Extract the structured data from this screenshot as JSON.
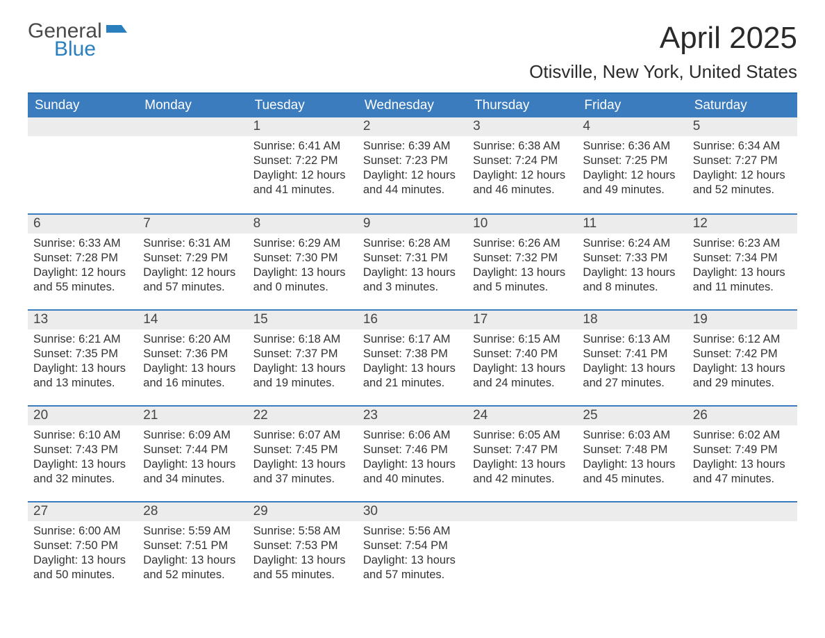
{
  "logo": {
    "general": "General",
    "blue": "Blue"
  },
  "title": "April 2025",
  "location": "Otisville, New York, United States",
  "colors": {
    "header_bg": "#3b7cbf",
    "header_text": "#ffffff",
    "row_border": "#3b7cbf",
    "daynum_bg": "#ececec",
    "body_text": "#333333",
    "logo_blue": "#2a7fbf",
    "logo_gray": "#4a4a4a"
  },
  "day_labels": [
    "Sunday",
    "Monday",
    "Tuesday",
    "Wednesday",
    "Thursday",
    "Friday",
    "Saturday"
  ],
  "weeks": [
    [
      null,
      null,
      {
        "n": "1",
        "sunrise": "6:41 AM",
        "sunset": "7:22 PM",
        "daylight": "12 hours and 41 minutes."
      },
      {
        "n": "2",
        "sunrise": "6:39 AM",
        "sunset": "7:23 PM",
        "daylight": "12 hours and 44 minutes."
      },
      {
        "n": "3",
        "sunrise": "6:38 AM",
        "sunset": "7:24 PM",
        "daylight": "12 hours and 46 minutes."
      },
      {
        "n": "4",
        "sunrise": "6:36 AM",
        "sunset": "7:25 PM",
        "daylight": "12 hours and 49 minutes."
      },
      {
        "n": "5",
        "sunrise": "6:34 AM",
        "sunset": "7:27 PM",
        "daylight": "12 hours and 52 minutes."
      }
    ],
    [
      {
        "n": "6",
        "sunrise": "6:33 AM",
        "sunset": "7:28 PM",
        "daylight": "12 hours and 55 minutes."
      },
      {
        "n": "7",
        "sunrise": "6:31 AM",
        "sunset": "7:29 PM",
        "daylight": "12 hours and 57 minutes."
      },
      {
        "n": "8",
        "sunrise": "6:29 AM",
        "sunset": "7:30 PM",
        "daylight": "13 hours and 0 minutes."
      },
      {
        "n": "9",
        "sunrise": "6:28 AM",
        "sunset": "7:31 PM",
        "daylight": "13 hours and 3 minutes."
      },
      {
        "n": "10",
        "sunrise": "6:26 AM",
        "sunset": "7:32 PM",
        "daylight": "13 hours and 5 minutes."
      },
      {
        "n": "11",
        "sunrise": "6:24 AM",
        "sunset": "7:33 PM",
        "daylight": "13 hours and 8 minutes."
      },
      {
        "n": "12",
        "sunrise": "6:23 AM",
        "sunset": "7:34 PM",
        "daylight": "13 hours and 11 minutes."
      }
    ],
    [
      {
        "n": "13",
        "sunrise": "6:21 AM",
        "sunset": "7:35 PM",
        "daylight": "13 hours and 13 minutes."
      },
      {
        "n": "14",
        "sunrise": "6:20 AM",
        "sunset": "7:36 PM",
        "daylight": "13 hours and 16 minutes."
      },
      {
        "n": "15",
        "sunrise": "6:18 AM",
        "sunset": "7:37 PM",
        "daylight": "13 hours and 19 minutes."
      },
      {
        "n": "16",
        "sunrise": "6:17 AM",
        "sunset": "7:38 PM",
        "daylight": "13 hours and 21 minutes."
      },
      {
        "n": "17",
        "sunrise": "6:15 AM",
        "sunset": "7:40 PM",
        "daylight": "13 hours and 24 minutes."
      },
      {
        "n": "18",
        "sunrise": "6:13 AM",
        "sunset": "7:41 PM",
        "daylight": "13 hours and 27 minutes."
      },
      {
        "n": "19",
        "sunrise": "6:12 AM",
        "sunset": "7:42 PM",
        "daylight": "13 hours and 29 minutes."
      }
    ],
    [
      {
        "n": "20",
        "sunrise": "6:10 AM",
        "sunset": "7:43 PM",
        "daylight": "13 hours and 32 minutes."
      },
      {
        "n": "21",
        "sunrise": "6:09 AM",
        "sunset": "7:44 PM",
        "daylight": "13 hours and 34 minutes."
      },
      {
        "n": "22",
        "sunrise": "6:07 AM",
        "sunset": "7:45 PM",
        "daylight": "13 hours and 37 minutes."
      },
      {
        "n": "23",
        "sunrise": "6:06 AM",
        "sunset": "7:46 PM",
        "daylight": "13 hours and 40 minutes."
      },
      {
        "n": "24",
        "sunrise": "6:05 AM",
        "sunset": "7:47 PM",
        "daylight": "13 hours and 42 minutes."
      },
      {
        "n": "25",
        "sunrise": "6:03 AM",
        "sunset": "7:48 PM",
        "daylight": "13 hours and 45 minutes."
      },
      {
        "n": "26",
        "sunrise": "6:02 AM",
        "sunset": "7:49 PM",
        "daylight": "13 hours and 47 minutes."
      }
    ],
    [
      {
        "n": "27",
        "sunrise": "6:00 AM",
        "sunset": "7:50 PM",
        "daylight": "13 hours and 50 minutes."
      },
      {
        "n": "28",
        "sunrise": "5:59 AM",
        "sunset": "7:51 PM",
        "daylight": "13 hours and 52 minutes."
      },
      {
        "n": "29",
        "sunrise": "5:58 AM",
        "sunset": "7:53 PM",
        "daylight": "13 hours and 55 minutes."
      },
      {
        "n": "30",
        "sunrise": "5:56 AM",
        "sunset": "7:54 PM",
        "daylight": "13 hours and 57 minutes."
      },
      null,
      null,
      null
    ]
  ],
  "field_labels": {
    "sunrise": "Sunrise:",
    "sunset": "Sunset:",
    "daylight": "Daylight:"
  }
}
